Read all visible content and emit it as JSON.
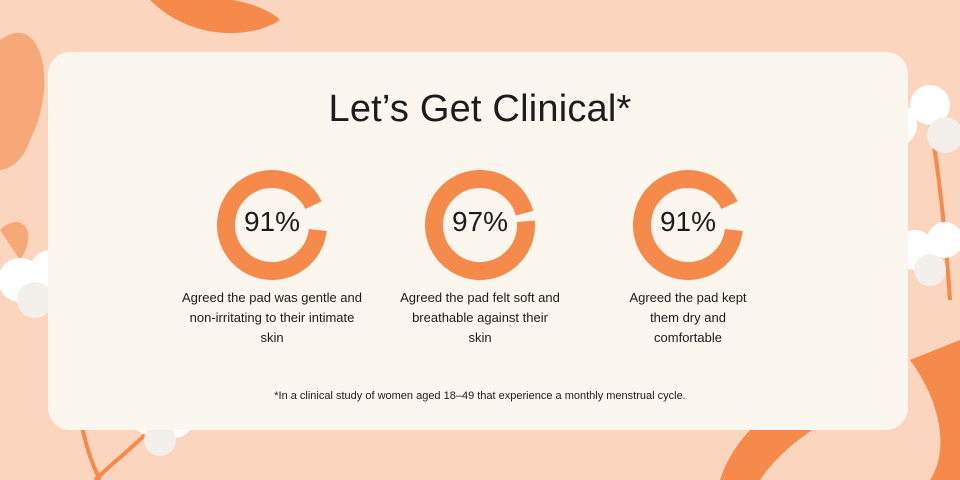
{
  "title": "Let’s Get Clinical*",
  "colors": {
    "background": "#fbd5be",
    "card": "#fbf6ee",
    "accent": "#f58a4b",
    "text": "#1c1c1c"
  },
  "stats": [
    {
      "percent_label": "91%",
      "value": 91,
      "description": "Agreed the pad was gentle and non-irritating to their intimate skin"
    },
    {
      "percent_label": "97%",
      "value": 97,
      "description": "Agreed the pad felt soft and breathable against their skin"
    },
    {
      "percent_label": "91%",
      "value": 91,
      "description": "Agreed the pad kept them dry and comfortable"
    }
  ],
  "footnote": "*In a clinical study of women aged 18–49 that experience a monthly menstrual cycle.",
  "decorations": [
    "cotton-flower-icon",
    "leaf-icon"
  ]
}
